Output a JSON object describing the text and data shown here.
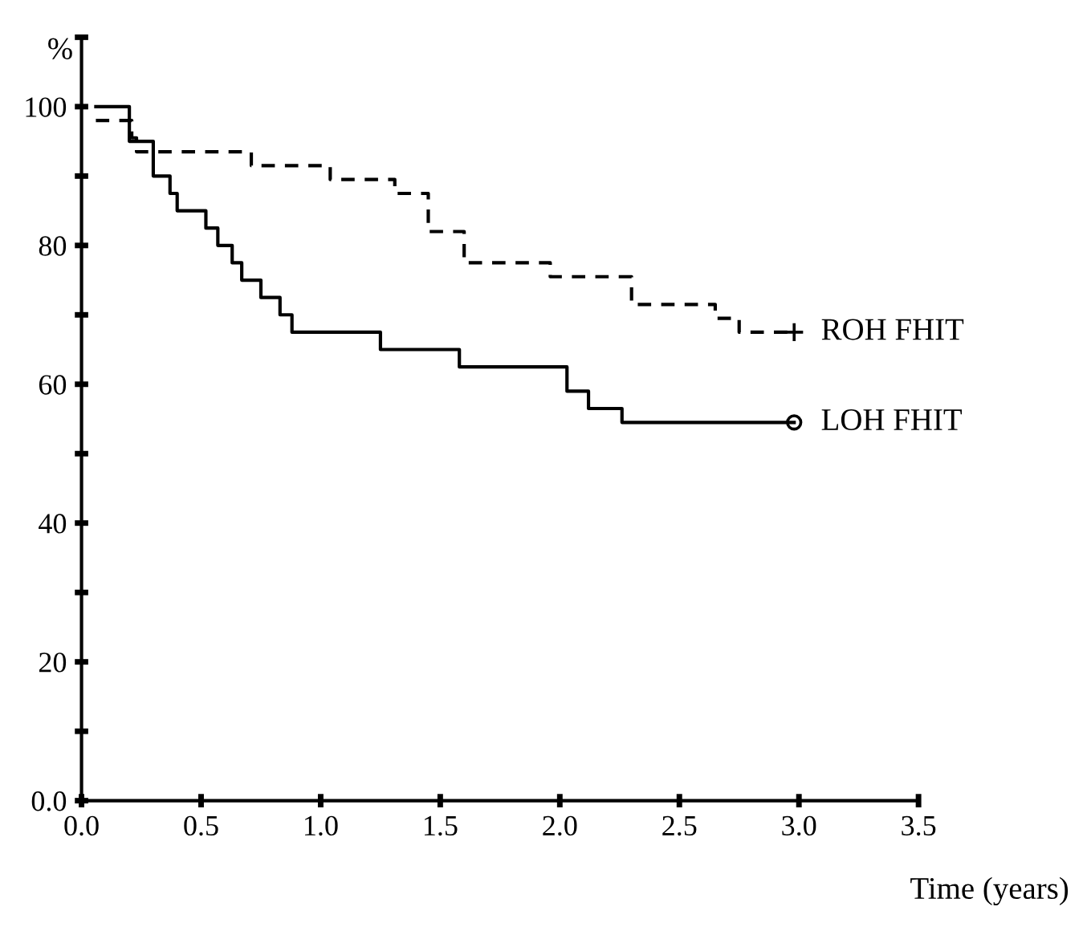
{
  "chart_data": {
    "type": "step",
    "xlabel": "Time (years)",
    "ylabel": "%",
    "xlim": [
      0,
      3.5
    ],
    "xticks": [
      {
        "value": 0,
        "label": "0.0"
      },
      {
        "value": 0.5,
        "label": "0.5"
      },
      {
        "value": 1,
        "label": "1.0"
      },
      {
        "value": 1.5,
        "label": "1.5"
      },
      {
        "value": 2,
        "label": "2.0"
      },
      {
        "value": 2.5,
        "label": "2.5"
      },
      {
        "value": 3,
        "label": "3.0"
      },
      {
        "value": 3.5,
        "label": "3.5"
      }
    ],
    "ylim": [
      0,
      110
    ],
    "yticks": [
      {
        "value": 0,
        "label": "0.0"
      },
      {
        "value": 10,
        "label": null
      },
      20,
      {
        "value": 30,
        "label": null
      },
      40,
      {
        "value": 50,
        "label": null
      },
      60,
      {
        "value": 70,
        "label": null
      },
      80,
      {
        "value": 90,
        "label": null
      },
      100,
      {
        "value": 110,
        "label": null
      }
    ],
    "grid": false,
    "legend": false,
    "series": [
      {
        "name": "ROH FHIT",
        "color": "#000000",
        "line_style": "dashed",
        "x": [
          0.06,
          0.21,
          0.23,
          0.71,
          1.04,
          1.31,
          1.45,
          1.6,
          1.96,
          2.3,
          2.65,
          2.75,
          2.98
        ],
        "values": [
          98,
          95.5,
          93.5,
          91.5,
          89.5,
          87.5,
          82,
          77.5,
          75.5,
          71.5,
          69.5,
          67.5,
          67.5
        ]
      },
      {
        "name": "LOH FHIT",
        "color": "#000000",
        "line_style": "solid",
        "x": [
          0.06,
          0.2,
          0.3,
          0.37,
          0.4,
          0.52,
          0.57,
          0.63,
          0.67,
          0.75,
          0.83,
          0.88,
          1.25,
          1.58,
          2.03,
          2.12,
          2.26,
          2.98
        ],
        "values": [
          100,
          95,
          90,
          87.5,
          85,
          82.5,
          80,
          77.5,
          75,
          72.5,
          70,
          67.5,
          65,
          62.5,
          59,
          56.5,
          54.5,
          54.5
        ]
      },
      {
        "type": "scatter",
        "color": "#000000",
        "marker": "cross",
        "x": [
          2.98
        ],
        "values": [
          67.5
        ]
      },
      {
        "type": "scatter",
        "color": "#000000",
        "marker": "circle",
        "x": [
          2.98
        ],
        "values": [
          54.5
        ]
      }
    ]
  }
}
